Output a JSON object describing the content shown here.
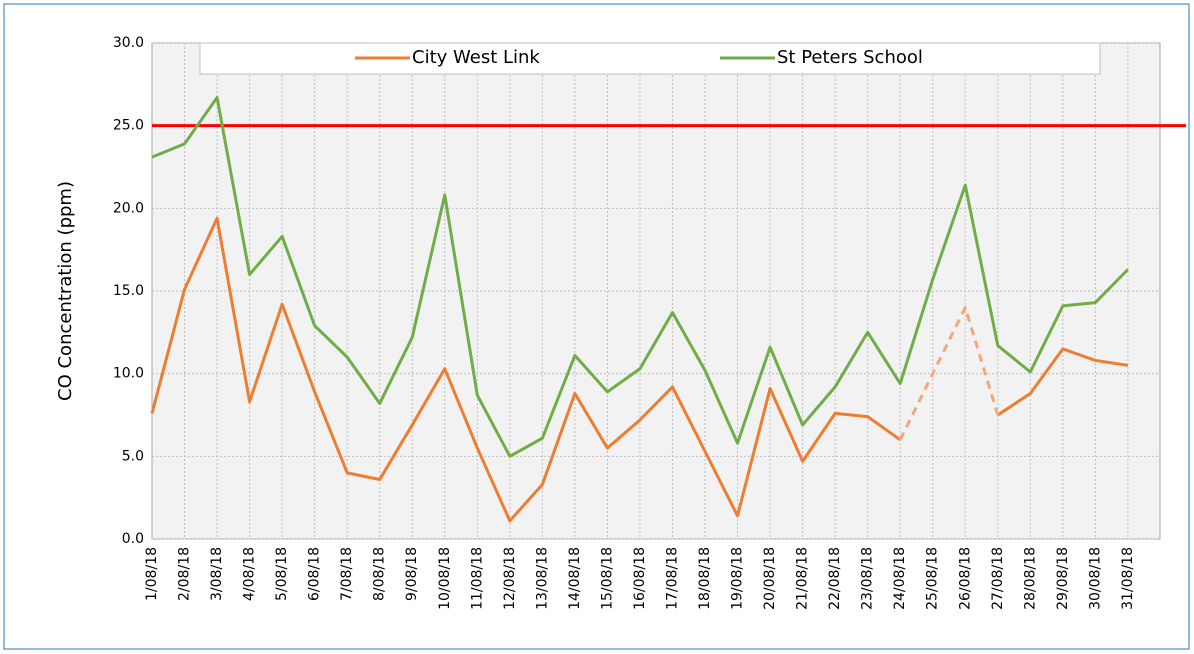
{
  "chart_data": {
    "type": "line",
    "y_label": "CO Concentration (ppm)",
    "categories": [
      "1/08/18",
      "2/08/18",
      "3/08/18",
      "4/08/18",
      "5/08/18",
      "6/08/18",
      "7/08/18",
      "8/08/18",
      "9/08/18",
      "10/08/18",
      "11/08/18",
      "12/08/18",
      "13/08/18",
      "14/08/18",
      "15/08/18",
      "16/08/18",
      "17/08/18",
      "18/08/18",
      "19/08/18",
      "20/08/18",
      "21/08/18",
      "22/08/18",
      "23/08/18",
      "24/08/18",
      "25/08/18",
      "26/08/18",
      "27/08/18",
      "28/08/18",
      "29/08/18",
      "30/08/18",
      "31/08/18"
    ],
    "series": [
      {
        "name": "City West Link",
        "color": "#ed7d31",
        "values": [
          7.6,
          15.1,
          19.4,
          8.3,
          14.2,
          8.9,
          4.0,
          3.6,
          6.9,
          10.3,
          5.5,
          1.1,
          3.3,
          8.8,
          5.5,
          7.2,
          9.2,
          5.3,
          1.4,
          9.1,
          4.7,
          7.6,
          7.4,
          6.0,
          null,
          null,
          7.5,
          8.8,
          11.5,
          10.8,
          10.5
        ]
      },
      {
        "color": "#f4a77a",
        "dashed": true,
        "values": [
          null,
          null,
          null,
          null,
          null,
          null,
          null,
          null,
          null,
          null,
          null,
          null,
          null,
          null,
          null,
          null,
          null,
          null,
          null,
          null,
          null,
          null,
          null,
          6.0,
          10.0,
          14.0,
          7.5,
          null,
          null,
          null,
          null
        ]
      },
      {
        "name": "St Peters School",
        "color": "#70ad47",
        "values": [
          23.1,
          23.9,
          26.7,
          16.0,
          18.3,
          12.9,
          11.0,
          8.2,
          12.2,
          20.8,
          8.7,
          5.0,
          6.1,
          11.1,
          8.9,
          10.3,
          13.7,
          10.2,
          5.8,
          11.6,
          6.9,
          9.2,
          12.5,
          9.4,
          15.7,
          21.4,
          11.7,
          10.1,
          14.1,
          14.3,
          16.3
        ]
      }
    ],
    "threshold": {
      "value": 25,
      "color": "#ff0000"
    },
    "ylim": [
      0,
      30
    ],
    "yticks": [
      {
        "value": 0,
        "label": "0.0"
      },
      {
        "value": 5,
        "label": "5.0"
      },
      {
        "value": 10,
        "label": "10.0"
      },
      {
        "value": 15,
        "label": "15.0"
      },
      {
        "value": 20,
        "label": "20.0"
      },
      {
        "value": 25,
        "label": "25.0"
      },
      {
        "value": 30,
        "label": "30.0"
      }
    ],
    "grid": true
  }
}
